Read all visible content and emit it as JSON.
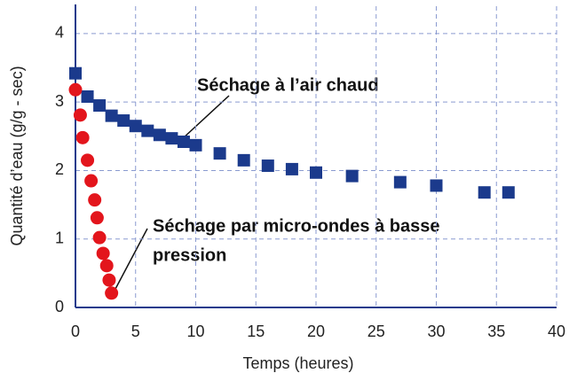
{
  "chart_data": {
    "type": "scatter",
    "x_label": "Temps (heures)",
    "y_label": "Quantité d’eau (g/g - sec)",
    "xlim": [
      0,
      40
    ],
    "ylim": [
      0,
      4.4
    ],
    "xticks": [
      0,
      5,
      10,
      15,
      20,
      25,
      30,
      35,
      40
    ],
    "yticks": [
      0,
      1,
      2,
      3,
      4
    ],
    "grid": true,
    "series": [
      {
        "name": "Séchage à l’air chaud",
        "color": "#1b3a8c",
        "marker": "square",
        "x": [
          0,
          1,
          2,
          3,
          4,
          5,
          6,
          7,
          8,
          9,
          10,
          12,
          14,
          16,
          18,
          20,
          23,
          27,
          30,
          34,
          36
        ],
        "values": [
          3.42,
          3.08,
          2.95,
          2.8,
          2.73,
          2.65,
          2.58,
          2.52,
          2.47,
          2.42,
          2.37,
          2.25,
          2.15,
          2.07,
          2.02,
          1.97,
          1.92,
          1.83,
          1.78,
          1.68,
          1.68
        ]
      },
      {
        "name": "Séchage par micro-ondes à basse pression",
        "color": "#e3151c",
        "marker": "circle",
        "x": [
          0,
          0.4,
          0.6,
          1,
          1.3,
          1.6,
          1.8,
          2,
          2.3,
          2.6,
          2.8,
          3
        ],
        "values": [
          3.18,
          2.81,
          2.48,
          2.15,
          1.85,
          1.57,
          1.31,
          1.02,
          0.79,
          0.61,
          0.4,
          0.21
        ]
      }
    ],
    "annotations": [
      {
        "lines": [
          "Séchage à l’air chaud"
        ]
      },
      {
        "lines": [
          "Séchage par micro-ondes à basse",
          "pression"
        ]
      }
    ]
  }
}
